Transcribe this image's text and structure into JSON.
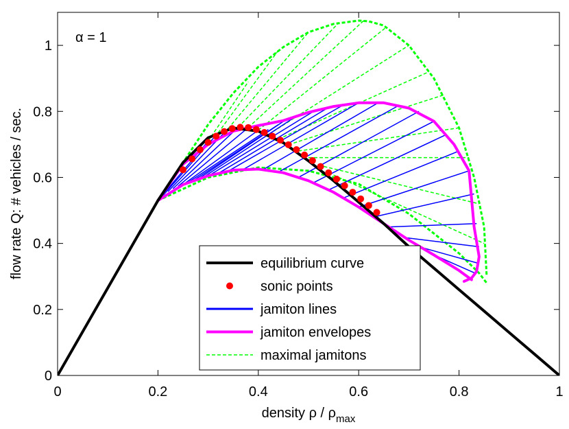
{
  "chart_data": {
    "type": "line",
    "annotation": "α = 1",
    "xlabel": {
      "main": "density ρ / ρ",
      "sub": "max"
    },
    "ylabel": "flow rate Q: # vehicles / sec.",
    "xlim": [
      0,
      1
    ],
    "ylim": [
      0,
      1.1
    ],
    "xticks": [
      0,
      0.2,
      0.4,
      0.6,
      0.8,
      1
    ],
    "xtick_labels": [
      "0",
      "0.2",
      "0.4",
      "0.6",
      "0.8",
      "1"
    ],
    "yticks": [
      0,
      0.2,
      0.4,
      0.6,
      0.8,
      1
    ],
    "ytick_labels": [
      "0",
      "0.2",
      "0.4",
      "0.6",
      "0.8",
      "1"
    ],
    "grid": false,
    "legend_position": "bottom-center",
    "legend": [
      {
        "label": "equilibrium curve",
        "style": "solid-thick",
        "color": "#000000"
      },
      {
        "label": "sonic points",
        "style": "dot",
        "color": "#ff0000"
      },
      {
        "label": "jamiton lines",
        "style": "solid",
        "color": "#0000ff"
      },
      {
        "label": "jamiton envelopes",
        "style": "solid-thick",
        "color": "#ff00ff"
      },
      {
        "label": "maximal jamitons",
        "style": "dashed",
        "color": "#00ff00"
      }
    ],
    "equilibrium_curve": {
      "x": [
        0,
        0.2,
        0.25,
        0.3,
        0.35,
        0.4,
        0.45,
        0.5,
        0.55,
        0.6,
        0.65,
        0.7,
        0.75,
        0.8,
        0.85,
        0.9,
        0.95,
        1.0
      ],
      "y": [
        0,
        0.53,
        0.645,
        0.72,
        0.75,
        0.74,
        0.705,
        0.65,
        0.59,
        0.525,
        0.46,
        0.39,
        0.325,
        0.26,
        0.195,
        0.13,
        0.065,
        0
      ]
    },
    "sonic_points": {
      "x": [
        0.25,
        0.268,
        0.284,
        0.3,
        0.316,
        0.332,
        0.348,
        0.364,
        0.38,
        0.396,
        0.412,
        0.428,
        0.444,
        0.46,
        0.476,
        0.492,
        0.508,
        0.524,
        0.54,
        0.556,
        0.572,
        0.588,
        0.604,
        0.62,
        0.636
      ],
      "y": [
        0.623,
        0.656,
        0.684,
        0.706,
        0.725,
        0.739,
        0.748,
        0.752,
        0.751,
        0.745,
        0.736,
        0.725,
        0.713,
        0.699,
        0.684,
        0.668,
        0.651,
        0.633,
        0.614,
        0.595,
        0.575,
        0.555,
        0.535,
        0.515,
        0.494
      ]
    },
    "maximal_jamitons": {
      "upper": {
        "x": [
          0.2,
          0.25,
          0.3,
          0.35,
          0.4,
          0.45,
          0.5,
          0.55,
          0.6,
          0.62,
          0.65,
          0.7,
          0.75,
          0.8,
          0.83,
          0.85,
          0.855
        ],
        "y": [
          0.53,
          0.645,
          0.76,
          0.855,
          0.935,
          0.995,
          1.04,
          1.065,
          1.075,
          1.073,
          1.06,
          1.0,
          0.9,
          0.75,
          0.6,
          0.45,
          0.3
        ]
      },
      "lower": {
        "x": [
          0.2,
          0.3,
          0.4,
          0.5,
          0.6,
          0.7,
          0.8,
          0.84,
          0.855
        ],
        "y": [
          0.53,
          0.6,
          0.63,
          0.62,
          0.58,
          0.49,
          0.37,
          0.31,
          0.28
        ]
      },
      "chords": [
        [
          0.3,
          0.71,
          0.38,
          0.89
        ],
        [
          0.32,
          0.735,
          0.44,
          0.985
        ],
        [
          0.34,
          0.748,
          0.5,
          1.04
        ],
        [
          0.36,
          0.752,
          0.56,
          1.068
        ],
        [
          0.38,
          0.751,
          0.61,
          1.075
        ],
        [
          0.4,
          0.743,
          0.655,
          1.055
        ],
        [
          0.42,
          0.73,
          0.7,
          1.0
        ],
        [
          0.44,
          0.716,
          0.74,
          0.92
        ],
        [
          0.46,
          0.699,
          0.77,
          0.85
        ],
        [
          0.48,
          0.68,
          0.8,
          0.75
        ],
        [
          0.5,
          0.66,
          0.82,
          0.66
        ],
        [
          0.52,
          0.637,
          0.84,
          0.52
        ],
        [
          0.54,
          0.614,
          0.85,
          0.4
        ]
      ]
    },
    "jamiton_envelopes": {
      "upper": {
        "x": [
          0.2,
          0.25,
          0.3,
          0.35,
          0.4,
          0.45,
          0.5,
          0.55,
          0.6,
          0.65,
          0.7,
          0.75,
          0.79,
          0.82,
          0.83,
          0.84,
          0.835,
          0.825,
          0.81
        ],
        "y": [
          0.53,
          0.64,
          0.7,
          0.74,
          0.757,
          0.772,
          0.797,
          0.815,
          0.826,
          0.826,
          0.81,
          0.77,
          0.7,
          0.62,
          0.45,
          0.36,
          0.315,
          0.295,
          0.285
        ]
      },
      "lower": {
        "x": [
          0.2,
          0.25,
          0.3,
          0.35,
          0.4,
          0.45,
          0.5,
          0.55,
          0.6,
          0.65,
          0.7,
          0.75,
          0.8,
          0.825
        ],
        "y": [
          0.53,
          0.578,
          0.605,
          0.622,
          0.625,
          0.614,
          0.59,
          0.555,
          0.51,
          0.46,
          0.41,
          0.365,
          0.318,
          0.29
        ]
      }
    },
    "jamiton_lines": [
      [
        0.2,
        0.53,
        0.3,
        0.71
      ],
      [
        0.21,
        0.545,
        0.32,
        0.735
      ],
      [
        0.22,
        0.557,
        0.34,
        0.748
      ],
      [
        0.23,
        0.566,
        0.36,
        0.752
      ],
      [
        0.24,
        0.573,
        0.38,
        0.751
      ],
      [
        0.25,
        0.578,
        0.4,
        0.743
      ],
      [
        0.26,
        0.585,
        0.42,
        0.745
      ],
      [
        0.27,
        0.59,
        0.44,
        0.76
      ],
      [
        0.28,
        0.595,
        0.46,
        0.78
      ],
      [
        0.29,
        0.6,
        0.48,
        0.79
      ],
      [
        0.3,
        0.604,
        0.51,
        0.8
      ],
      [
        0.32,
        0.612,
        0.54,
        0.812
      ],
      [
        0.34,
        0.619,
        0.57,
        0.82
      ],
      [
        0.37,
        0.624,
        0.6,
        0.826
      ],
      [
        0.41,
        0.624,
        0.64,
        0.827
      ],
      [
        0.44,
        0.616,
        0.68,
        0.818
      ],
      [
        0.48,
        0.6,
        0.72,
        0.8
      ],
      [
        0.51,
        0.584,
        0.75,
        0.77
      ],
      [
        0.54,
        0.562,
        0.775,
        0.73
      ],
      [
        0.57,
        0.538,
        0.8,
        0.68
      ],
      [
        0.6,
        0.51,
        0.82,
        0.62
      ],
      [
        0.63,
        0.48,
        0.83,
        0.55
      ],
      [
        0.66,
        0.45,
        0.835,
        0.46
      ],
      [
        0.69,
        0.418,
        0.84,
        0.39
      ],
      [
        0.72,
        0.39,
        0.838,
        0.34
      ],
      [
        0.75,
        0.365,
        0.832,
        0.31
      ],
      [
        0.78,
        0.337,
        0.822,
        0.293
      ]
    ]
  }
}
